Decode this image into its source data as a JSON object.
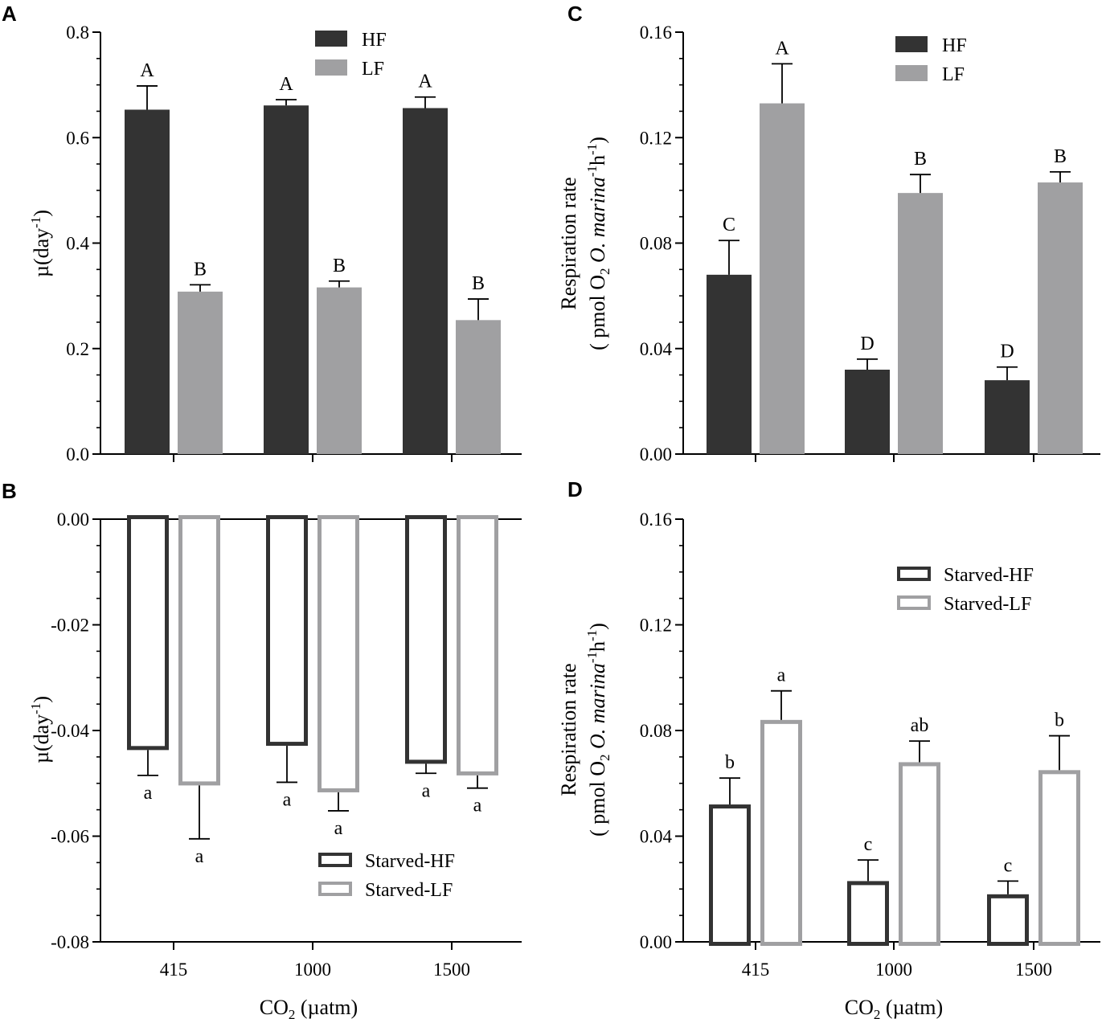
{
  "colors": {
    "dark": "#333333",
    "light": "#a0a0a2",
    "axis": "#000000",
    "hollow_fill": "#ffffff"
  },
  "shared": {
    "categories": [
      "415",
      "1000",
      "1500"
    ],
    "xlabel_main": "CO",
    "xlabel_sub": "2",
    "xlabel_tail": " (µatm)"
  },
  "chart_data": [
    {
      "panel": "A",
      "type": "bar",
      "style": "filled",
      "ylabel": "µ(day",
      "ylabel_sup": "-1",
      "ylabel_tail": ")",
      "ylim": [
        0,
        0.8
      ],
      "yticks": [
        0.0,
        0.2,
        0.4,
        0.6,
        0.8
      ],
      "yticklabels": [
        "0.0",
        "0.2",
        "0.4",
        "0.6",
        "0.8"
      ],
      "minor_step": 0.05,
      "baseline": "bottom",
      "legend_position": "top-center",
      "categories": [
        "415",
        "1000",
        "1500"
      ],
      "series": [
        {
          "name": "HF",
          "color": "dark",
          "values": [
            0.653,
            0.661,
            0.656
          ],
          "errors": [
            0.045,
            0.011,
            0.021
          ],
          "letters": [
            "A",
            "A",
            "A"
          ]
        },
        {
          "name": "LF",
          "color": "light",
          "values": [
            0.308,
            0.316,
            0.254
          ],
          "errors": [
            0.013,
            0.012,
            0.04
          ],
          "letters": [
            "B",
            "B",
            "B"
          ]
        }
      ]
    },
    {
      "panel": "B",
      "type": "bar",
      "style": "hollow",
      "ylabel": "µ(day",
      "ylabel_sup": "-1",
      "ylabel_tail": ")",
      "ylim": [
        -0.08,
        0.0
      ],
      "yticks": [
        0.0,
        -0.02,
        -0.04,
        -0.06,
        -0.08
      ],
      "yticklabels": [
        "0.00",
        "-0.02",
        "-0.04",
        "-0.06",
        "-0.08"
      ],
      "minor_step": 0.005,
      "baseline": "top",
      "legend_position": "bottom-right",
      "categories": [
        "415",
        "1000",
        "1500"
      ],
      "series": [
        {
          "name": "Starved-HF",
          "color": "dark",
          "values": [
            -0.0437,
            -0.0429,
            -0.0463
          ],
          "errors": [
            0.0048,
            0.0069,
            0.0018
          ],
          "letters": [
            "a",
            "a",
            "a"
          ]
        },
        {
          "name": "Starved-LF",
          "color": "light",
          "values": [
            -0.0504,
            -0.0517,
            -0.0485
          ],
          "errors": [
            0.0101,
            0.0035,
            0.0024
          ],
          "letters": [
            "a",
            "a",
            "a"
          ]
        }
      ]
    },
    {
      "panel": "C",
      "type": "bar",
      "style": "filled",
      "ylabel": "Respiration rate",
      "ylabel2_pre": "( pmol O",
      "ylabel2_sub": "2",
      "ylabel2_italic": " O. marina",
      "ylabel2_sup1": "-1",
      "ylabel2_h": "h",
      "ylabel2_sup2": "-1",
      "ylabel2_tail": ")",
      "ylim": [
        0,
        0.16
      ],
      "yticks": [
        0.0,
        0.04,
        0.08,
        0.12,
        0.16
      ],
      "yticklabels": [
        "0.00",
        "0.04",
        "0.08",
        "0.12",
        "0.16"
      ],
      "minor_step": 0.01,
      "baseline": "bottom",
      "legend_position": "top-center",
      "categories": [
        "415",
        "1000",
        "1500"
      ],
      "series": [
        {
          "name": "HF",
          "color": "dark",
          "values": [
            0.068,
            0.032,
            0.028
          ],
          "errors": [
            0.013,
            0.004,
            0.005
          ],
          "letters": [
            "C",
            "D",
            "D"
          ]
        },
        {
          "name": "LF",
          "color": "light",
          "values": [
            0.133,
            0.099,
            0.103
          ],
          "errors": [
            0.015,
            0.007,
            0.004
          ],
          "letters": [
            "A",
            "B",
            "B"
          ]
        }
      ]
    },
    {
      "panel": "D",
      "type": "bar",
      "style": "hollow",
      "ylabel": "Respiration rate",
      "ylabel2_pre": "( pmol O",
      "ylabel2_sub": "2",
      "ylabel2_italic": " O. marina",
      "ylabel2_sup1": "-1",
      "ylabel2_h": "h",
      "ylabel2_sup2": "-1",
      "ylabel2_tail": ")",
      "ylim": [
        0,
        0.16
      ],
      "yticks": [
        0.0,
        0.04,
        0.08,
        0.12,
        0.16
      ],
      "yticklabels": [
        "0.00",
        "0.04",
        "0.08",
        "0.12",
        "0.16"
      ],
      "minor_step": 0.01,
      "baseline": "bottom",
      "legend_position": "top-right",
      "categories": [
        "415",
        "1000",
        "1500"
      ],
      "series": [
        {
          "name": "Starved-HF",
          "color": "dark",
          "values": [
            0.052,
            0.023,
            0.018
          ],
          "errors": [
            0.01,
            0.008,
            0.005
          ],
          "letters": [
            "b",
            "c",
            "c"
          ]
        },
        {
          "name": "Starved-LF",
          "color": "light",
          "values": [
            0.084,
            0.068,
            0.065
          ],
          "errors": [
            0.011,
            0.008,
            0.013
          ],
          "letters": [
            "a",
            "ab",
            "b"
          ]
        }
      ]
    }
  ]
}
